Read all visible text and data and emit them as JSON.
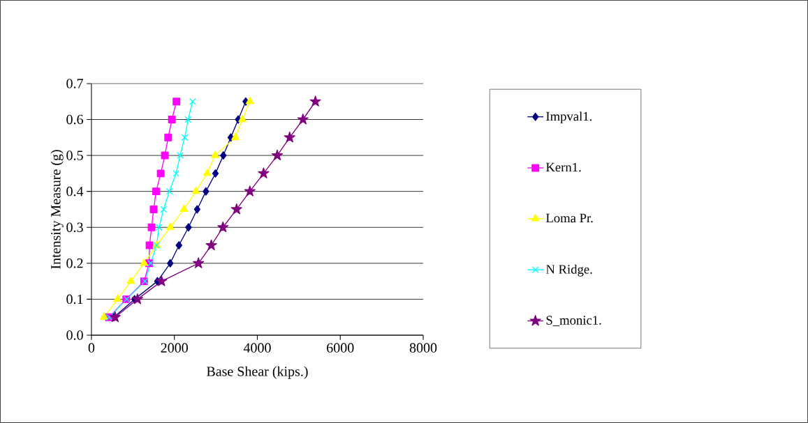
{
  "chart_data": {
    "type": "line",
    "xlabel": "Base Shear (kips.)",
    "ylabel": "Intensity Measure (g)",
    "xlim": [
      0,
      8000
    ],
    "ylim": [
      0,
      0.7
    ],
    "xticks": [
      0,
      2000,
      4000,
      6000,
      8000
    ],
    "yticks": [
      {
        "value": 0,
        "label": "0.0"
      },
      0.1,
      0.2,
      0.3,
      0.4,
      0.5,
      0.6,
      0.7
    ],
    "grid": "y",
    "legend": "right",
    "series": [
      {
        "name": "Impval1.",
        "color": "#000080",
        "marker": "diamond",
        "x": [
          540,
          1040,
          1590,
          1900,
          2110,
          2340,
          2550,
          2760,
          2990,
          3180,
          3360,
          3540,
          3720
        ],
        "values": [
          0.05,
          0.1,
          0.15,
          0.2,
          0.25,
          0.3,
          0.35,
          0.4,
          0.45,
          0.5,
          0.55,
          0.6,
          0.65
        ]
      },
      {
        "name": "Kern1.",
        "color": "#ff00ff",
        "marker": "square",
        "x": [
          420,
          840,
          1270,
          1390,
          1400,
          1450,
          1500,
          1560,
          1670,
          1770,
          1850,
          1940,
          2050
        ],
        "values": [
          0.05,
          0.1,
          0.15,
          0.2,
          0.25,
          0.3,
          0.35,
          0.4,
          0.45,
          0.5,
          0.55,
          0.6,
          0.65
        ]
      },
      {
        "name": "Loma Pr.",
        "color": "#ffff00",
        "marker": "triangle",
        "x": [
          305,
          630,
          950,
          1270,
          1570,
          1900,
          2230,
          2520,
          2790,
          2980,
          3470,
          3640,
          3820
        ],
        "values": [
          0.05,
          0.1,
          0.15,
          0.2,
          0.25,
          0.3,
          0.35,
          0.4,
          0.45,
          0.5,
          0.55,
          0.6,
          0.65
        ]
      },
      {
        "name": "N Ridge.",
        "color": "#00ffff",
        "marker": "cross",
        "x": [
          430,
          850,
          1290,
          1430,
          1570,
          1630,
          1740,
          1880,
          2040,
          2140,
          2250,
          2330,
          2440
        ],
        "values": [
          0.05,
          0.1,
          0.15,
          0.2,
          0.25,
          0.3,
          0.35,
          0.4,
          0.45,
          0.5,
          0.55,
          0.6,
          0.65
        ]
      },
      {
        "name": "S_monic1.",
        "color": "#800080",
        "marker": "star",
        "x": [
          570,
          1110,
          1690,
          2580,
          2890,
          3170,
          3500,
          3820,
          4150,
          4480,
          4780,
          5100,
          5400
        ],
        "values": [
          0.05,
          0.1,
          0.15,
          0.2,
          0.25,
          0.3,
          0.35,
          0.4,
          0.45,
          0.5,
          0.55,
          0.6,
          0.65
        ]
      }
    ]
  }
}
